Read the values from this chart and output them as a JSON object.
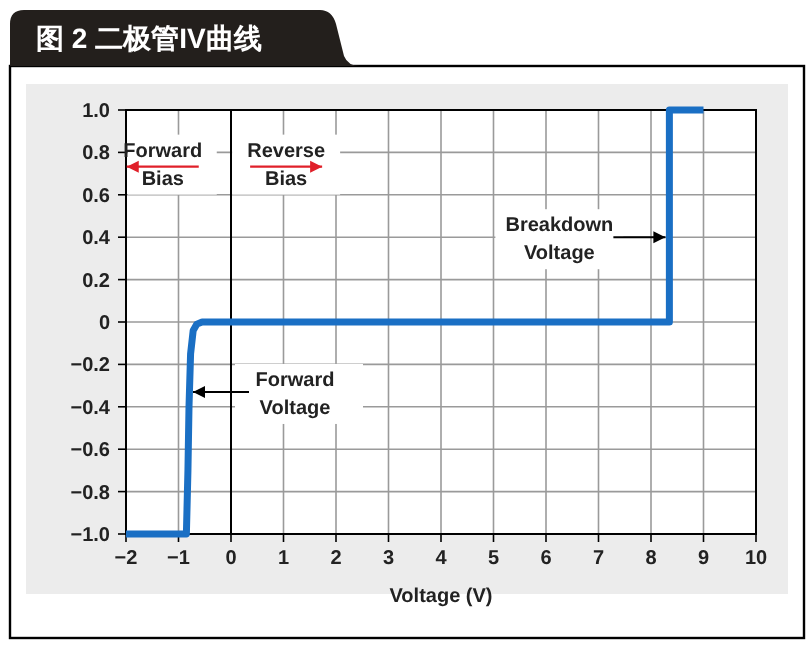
{
  "chart_data": {
    "type": "line",
    "title": "图 2 二极管IV曲线",
    "xlabel": "Voltage (V)",
    "x": [
      -2,
      -0.85,
      -0.82,
      -0.8,
      -0.77,
      -0.72,
      -0.65,
      -0.55,
      8.35,
      8.35,
      9
    ],
    "series": [
      {
        "color": "#1a6fc4",
        "values": [
          -1,
          -1,
          -0.7,
          -0.4,
          -0.15,
          -0.04,
          -0.01,
          0,
          0,
          1,
          1
        ]
      }
    ],
    "xlim": [
      -2,
      10
    ],
    "ylim": [
      -1,
      1
    ],
    "xticks": [
      {
        "value": -2,
        "label": "−2"
      },
      {
        "value": -1,
        "label": "−1"
      },
      0,
      1,
      2,
      3,
      4,
      5,
      6,
      7,
      8,
      9,
      10
    ],
    "yticks": [
      {
        "value": 1,
        "label": "1.0"
      },
      {
        "value": 0.8,
        "label": "0.8"
      },
      {
        "value": 0.6,
        "label": "0.6"
      },
      {
        "value": 0.4,
        "label": "0.4"
      },
      {
        "value": 0.2,
        "label": "0.2"
      },
      0,
      {
        "value": -0.2,
        "label": "−0.2"
      },
      {
        "value": -0.4,
        "label": "−0.4"
      },
      {
        "value": -0.6,
        "label": "−0.6"
      },
      {
        "value": -0.8,
        "label": "−0.8"
      },
      {
        "value": -1,
        "label": "−1.0"
      }
    ],
    "grid": true,
    "line_style": "solid",
    "marker": "none",
    "ref_lines": [
      {
        "axis": "x",
        "value": 0,
        "color": "#000000"
      }
    ],
    "annotations": [
      "Forward Bias",
      "Reverse Bias",
      {
        "text": "Breakdown Voltage",
        "x": 8.35,
        "y": 0.4
      },
      {
        "text": "Forward Voltage",
        "x": -0.8,
        "y": -0.33
      }
    ]
  }
}
